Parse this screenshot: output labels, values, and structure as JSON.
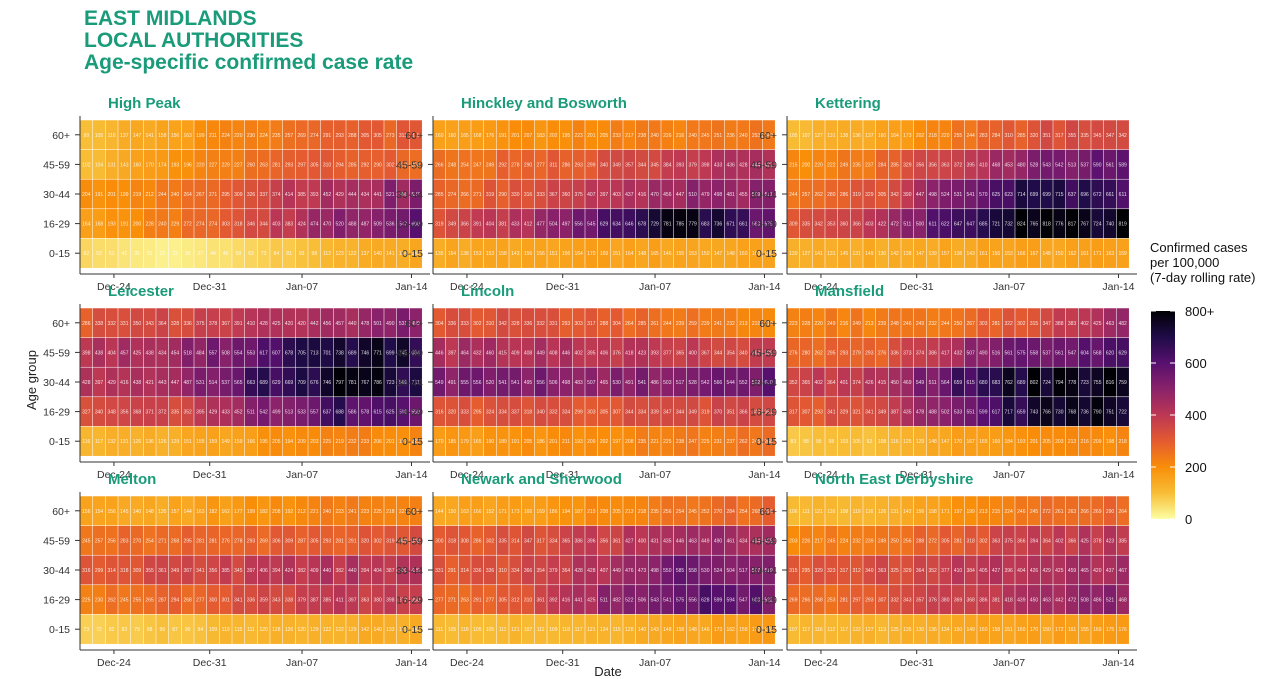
{
  "chart_data": {
    "type": "heatmap",
    "title_lines": [
      "EAST MIDLANDS",
      "LOCAL AUTHORITIES",
      "Age-specific confirmed case rate"
    ],
    "xlabel": "Date",
    "ylabel": "Age group",
    "x_ticks": [
      "Dec-24",
      "Dec-31",
      "Jan-07",
      "Jan-14"
    ],
    "age_groups": [
      "60+",
      "45-59",
      "30-44",
      "16-29",
      "0-15"
    ],
    "days": 27,
    "legend": {
      "title": [
        "Confirmed cases",
        "per 100,000",
        "(7-day rolling rate)"
      ],
      "ticks": [
        "800+",
        "600",
        "400",
        "200",
        "0"
      ],
      "range": [
        0,
        800
      ],
      "colors": [
        "#fcffa4",
        "#f8bd36",
        "#f98e09",
        "#e45a31",
        "#bc3754",
        "#8a226a",
        "#57106e",
        "#1f0c48",
        "#000004"
      ]
    },
    "panels": [
      {
        "name": "High Peak",
        "profile": [
          [
            100,
            160,
            230,
            275,
            300
          ],
          [
            100,
            180,
            250,
            300,
            280
          ],
          [
            190,
            240,
            330,
            450,
            500
          ],
          [
            160,
            230,
            340,
            480,
            600
          ],
          [
            60,
            20,
            60,
            120,
            150
          ]
        ]
      },
      {
        "name": "Hinckley and Bosworth",
        "profile": [
          [
            160,
            190,
            215,
            230,
            240
          ],
          [
            250,
            280,
            330,
            390,
            440
          ],
          [
            270,
            320,
            400,
            480,
            500
          ],
          [
            340,
            420,
            600,
            780,
            580
          ],
          [
            140,
            155,
            165,
            155,
            160
          ]
        ]
      },
      {
        "name": "Kettering",
        "profile": [
          [
            110,
            150,
            240,
            330,
            370
          ],
          [
            210,
            260,
            400,
            530,
            560
          ],
          [
            250,
            310,
            560,
            720,
            620
          ],
          [
            300,
            400,
            650,
            800,
            770
          ],
          [
            130,
            140,
            150,
            160,
            170
          ]
        ]
      },
      {
        "name": "Leicester",
        "profile": [
          [
            310,
            340,
            390,
            460,
            520
          ],
          [
            420,
            460,
            580,
            710,
            720
          ],
          [
            420,
            440,
            620,
            760,
            720
          ],
          [
            330,
            350,
            480,
            640,
            600
          ],
          [
            120,
            130,
            175,
            230,
            210
          ]
        ]
      },
      {
        "name": "Lincoln",
        "profile": [
          [
            320,
            320,
            300,
            250,
            220
          ],
          [
            430,
            440,
            410,
            380,
            360
          ],
          [
            520,
            520,
            500,
            540,
            560
          ],
          [
            320,
            320,
            310,
            340,
            360
          ],
          [
            170,
            190,
            210,
            230,
            250
          ]
        ]
      },
      {
        "name": "Mansfield",
        "profile": [
          [
            240,
            230,
            250,
            350,
            450
          ],
          [
            270,
            280,
            460,
            560,
            590
          ],
          [
            370,
            410,
            620,
            780,
            790
          ],
          [
            310,
            330,
            560,
            760,
            780
          ],
          [
            90,
            100,
            170,
            190,
            210
          ]
        ]
      },
      {
        "name": "Melton",
        "profile": [
          [
            145,
            145,
            190,
            230,
            230
          ],
          [
            260,
            270,
            290,
            300,
            320
          ],
          [
            300,
            340,
            380,
            410,
            420
          ],
          [
            240,
            270,
            330,
            400,
            380
          ],
          [
            70,
            90,
            120,
            130,
            140
          ]
        ]
      },
      {
        "name": "Newark and Sherwood",
        "profile": [
          [
            150,
            165,
            210,
            260,
            280
          ],
          [
            300,
            320,
            380,
            450,
            470
          ],
          [
            310,
            340,
            440,
            560,
            530
          ],
          [
            260,
            300,
            480,
            600,
            560
          ],
          [
            110,
            115,
            115,
            155,
            170
          ]
        ]
      },
      {
        "name": "North East Derbyshire",
        "profile": [
          [
            110,
            120,
            190,
            250,
            280
          ],
          [
            220,
            240,
            300,
            380,
            410
          ],
          [
            310,
            340,
            380,
            430,
            450
          ],
          [
            250,
            290,
            380,
            450,
            500
          ],
          [
            110,
            120,
            150,
            160,
            170
          ]
        ]
      }
    ]
  }
}
